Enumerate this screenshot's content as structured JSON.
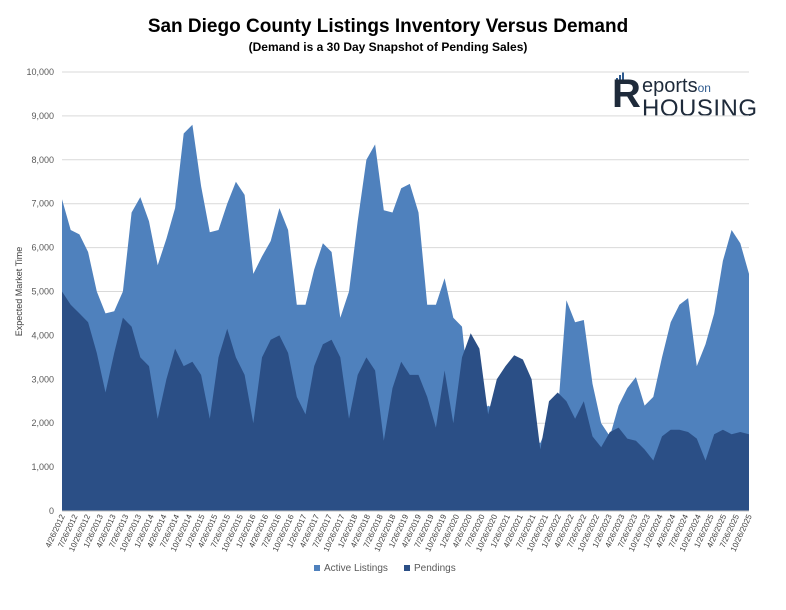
{
  "chart_data": {
    "type": "area",
    "title": "San Diego County Listings Inventory Versus Demand",
    "subtitle": "(Demand is a 30 Day Snapshot of Pending Sales)",
    "ylabel": "Expected Market Time",
    "xlabel": "",
    "ylim": [
      0,
      10000
    ],
    "yticks": [
      "0",
      "1,000",
      "2,000",
      "3,000",
      "4,000",
      "5,000",
      "6,000",
      "7,000",
      "8,000",
      "9,000",
      "10,000"
    ],
    "grid": true,
    "legend_position": "bottom",
    "xticks": [
      "4/26/2012",
      "7/26/2012",
      "10/26/2012",
      "1/26/2013",
      "4/26/2013",
      "7/26/2013",
      "10/26/2013",
      "1/26/2014",
      "4/26/2014",
      "7/26/2014",
      "10/26/2014",
      "1/26/2015",
      "4/26/2015",
      "7/26/2015",
      "10/26/2015",
      "1/26/2016",
      "4/26/2016",
      "7/26/2016",
      "10/26/2016",
      "1/26/2017",
      "4/26/2017",
      "7/26/2017",
      "10/26/2017",
      "1/26/2018",
      "4/26/2018",
      "7/26/2018",
      "10/26/2018",
      "1/26/2019",
      "4/26/2019",
      "7/26/2019",
      "10/26/2019",
      "1/26/2020",
      "4/26/2020",
      "7/26/2020",
      "10/26/2020",
      "1/26/2021",
      "4/26/2021",
      "7/26/2021",
      "10/26/2021",
      "1/26/2022",
      "4/26/2022",
      "7/26/2022",
      "10/26/2022",
      "1/26/2023",
      "4/26/2023",
      "7/26/2023",
      "10/26/2023",
      "1/26/2024",
      "4/26/2024",
      "7/26/2024",
      "10/26/2024",
      "1/26/2025",
      "4/26/2025",
      "7/26/2025",
      "10/26/2025"
    ],
    "series": [
      {
        "name": "Active Listings",
        "color": "#4f81bd",
        "values": [
          7100,
          6400,
          6300,
          5900,
          5000,
          4500,
          4550,
          5000,
          6800,
          7150,
          6600,
          5600,
          6200,
          6900,
          8600,
          8800,
          7400,
          6350,
          6400,
          7000,
          7500,
          7200,
          5400,
          5800,
          6150,
          6900,
          6400,
          4700,
          4700,
          5500,
          6100,
          5900,
          4400,
          5000,
          6600,
          8000,
          8350,
          6850,
          6800,
          7350,
          7450,
          6800,
          4700,
          4700,
          5300,
          4400,
          4200,
          2300,
          2200,
          2400,
          2300,
          2600,
          2900,
          2500,
          1650,
          1550,
          2000,
          2200,
          4800,
          4300,
          4350,
          2900,
          2000,
          1700,
          2400,
          2800,
          3050,
          2400,
          2600,
          3500,
          4300,
          4700,
          4850,
          3300,
          3800,
          4500,
          5700,
          6400,
          6100,
          5400
        ],
        "pendings": [
          5000,
          4700,
          4500,
          4300,
          3600,
          2700,
          3600,
          4400,
          4200,
          3500,
          3300,
          2100,
          3000,
          3700,
          3300,
          3400,
          3100,
          2100,
          3500,
          4150,
          3500,
          3100,
          2000,
          3500,
          3900,
          4000,
          3600,
          2600,
          2200,
          3300,
          3800,
          3900,
          3500,
          2100,
          3100,
          3500,
          3200,
          1600,
          2800,
          3400,
          3100,
          3100,
          2600,
          1900,
          3200,
          2000,
          3500,
          4050,
          3700,
          2200,
          3000,
          3300,
          3550,
          3450,
          3000,
          1400,
          2500,
          2700,
          2500,
          2100,
          2500,
          1700,
          1450,
          1800,
          1900,
          1650,
          1600,
          1400,
          1150,
          1700,
          1850,
          1850,
          1800,
          1650,
          1150,
          1750,
          1850,
          1750,
          1800,
          1750
        ]
      },
      {
        "name": "Pendings",
        "color": "#2b4f86"
      }
    ]
  }
}
